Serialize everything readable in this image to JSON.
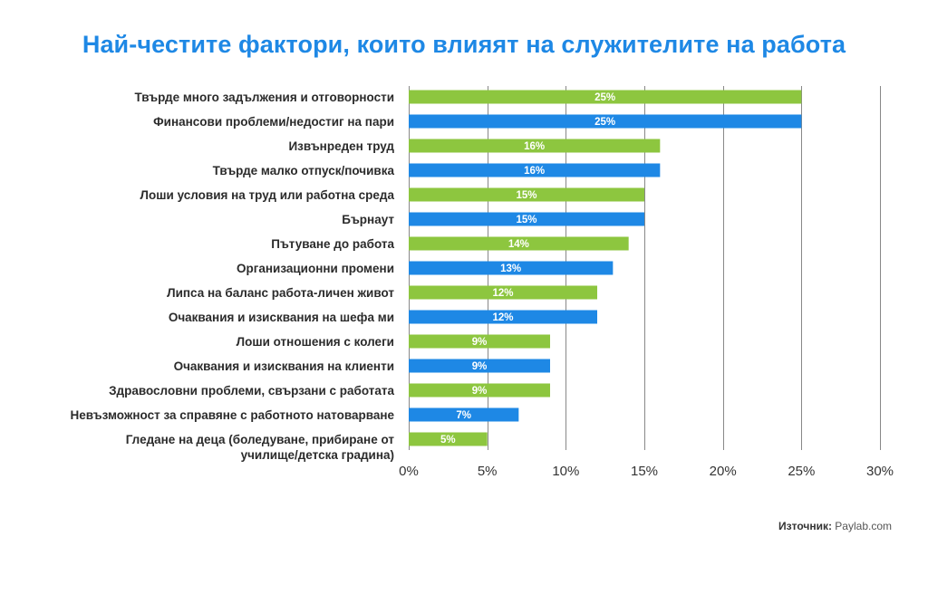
{
  "chart_data": {
    "type": "bar",
    "orientation": "horizontal",
    "title": "Най-честите фактори, които влияят на служителите на работа",
    "categories": [
      [
        "Твърде много задължения и отговорности"
      ],
      [
        "Финансови проблеми/недостиг на пари"
      ],
      [
        "Извънреден труд"
      ],
      [
        "Твърде малко отпуск/почивка"
      ],
      [
        "Лоши условия на труд или работна среда"
      ],
      [
        "Бърнаут"
      ],
      [
        "Пътуване до работа"
      ],
      [
        "Организационни промени"
      ],
      [
        "Липса на баланс работа-личен живот"
      ],
      [
        "Очаквания и изисквания на шефа ми"
      ],
      [
        "Лоши отношения с колеги"
      ],
      [
        "Очаквания и изисквания на клиенти"
      ],
      [
        "Здравословни проблеми, свързани с работата"
      ],
      [
        "Невъзможност за справяне с работното натоварване"
      ],
      [
        "Гледане на деца (боледуване, прибиране от",
        "училище/детска градина)"
      ]
    ],
    "values": [
      25,
      25,
      16,
      16,
      15,
      15,
      14,
      13,
      12,
      12,
      9,
      9,
      9,
      7,
      5
    ],
    "value_labels": [
      "25%",
      "25%",
      "16%",
      "16%",
      "15%",
      "15%",
      "14%",
      "13%",
      "12%",
      "12%",
      "9%",
      "9%",
      "9%",
      "7%",
      "5%"
    ],
    "bar_colors": [
      "#8dc63f",
      "#1e88e5",
      "#8dc63f",
      "#1e88e5",
      "#8dc63f",
      "#1e88e5",
      "#8dc63f",
      "#1e88e5",
      "#8dc63f",
      "#1e88e5",
      "#8dc63f",
      "#1e88e5",
      "#8dc63f",
      "#1e88e5",
      "#8dc63f"
    ],
    "xlim": [
      0,
      30
    ],
    "xticks": [
      0,
      5,
      10,
      15,
      20,
      25,
      30
    ],
    "xtick_labels": [
      "0%",
      "5%",
      "10%",
      "15%",
      "20%",
      "25%",
      "30%"
    ],
    "grid": true,
    "grid_color": "#888888",
    "xlabel": "",
    "ylabel": ""
  },
  "source": {
    "label": "Източник:",
    "value": "Paylab.com"
  },
  "colors": {
    "title": "#1e88e5",
    "green": "#8dc63f",
    "blue": "#1e88e5"
  }
}
